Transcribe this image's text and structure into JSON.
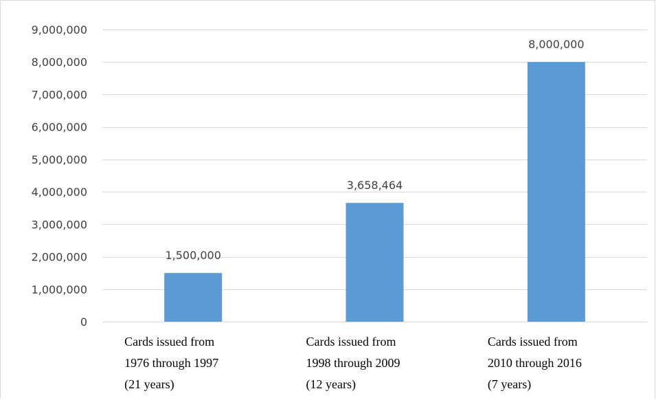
{
  "chart_data": {
    "type": "bar",
    "title": "",
    "xlabel": "",
    "ylabel": "",
    "categories": [
      [
        "Cards issued from",
        "1976 through 1997",
        "(21 years)"
      ],
      [
        "Cards issued from",
        "1998 through 2009",
        "(12 years)"
      ],
      [
        "Cards issued from",
        "2010 through 2016",
        "(7 years)"
      ]
    ],
    "values": [
      1500000,
      3658464,
      8000000
    ],
    "data_labels": [
      "1,500,000",
      "3,658,464",
      "8,000,000"
    ],
    "ylim": [
      0,
      9000000
    ],
    "y_ticks": [
      0,
      1000000,
      2000000,
      3000000,
      4000000,
      5000000,
      6000000,
      7000000,
      8000000,
      9000000
    ],
    "y_tick_labels": [
      "0",
      "1,000,000",
      "2,000,000",
      "3,000,000",
      "4,000,000",
      "5,000,000",
      "6,000,000",
      "7,000,000",
      "8,000,000",
      "9,000,000"
    ],
    "grid": true,
    "legend": "none",
    "bar_color": "#5b9bd5"
  }
}
